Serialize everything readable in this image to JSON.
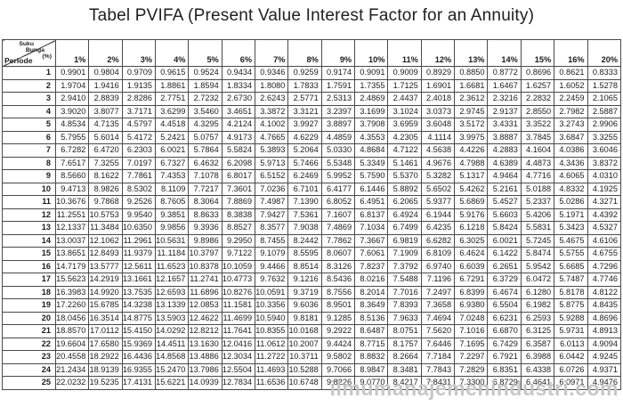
{
  "title": "Tabel PVIFA (Present Value Interest Factor for an Annuity)",
  "watermark": "ilmumanajemenindustri.com",
  "colors": {
    "border": "#4a4a4a",
    "text": "#1c1c1c",
    "watermark": "#c7c7c7",
    "background": "#ffffff"
  },
  "table": {
    "corner": {
      "diagonal_label_lines": [
        "Suku",
        "Bunga",
        "(%)"
      ],
      "row_label": "Periode"
    },
    "rate_headers": [
      "1%",
      "2%",
      "3%",
      "4%",
      "5%",
      "6%",
      "7%",
      "8%",
      "9%",
      "10%",
      "11%",
      "12%",
      "13%",
      "14%",
      "15%",
      "16%",
      "20%"
    ],
    "rows": [
      {
        "period": "1",
        "values": [
          "0.9901",
          "0.9804",
          "0.9709",
          "0.9615",
          "0.9524",
          "0.9434",
          "0.9346",
          "0.9259",
          "0.9174",
          "0.9091",
          "0.9009",
          "0.8929",
          "0.8850",
          "0.8772",
          "0.8696",
          "0.8621",
          "0.8333"
        ]
      },
      {
        "period": "2",
        "values": [
          "1.9704",
          "1.9416",
          "1.9135",
          "1.8861",
          "1.8594",
          "1.8334",
          "1.8080",
          "1.7833",
          "1.7591",
          "1.7355",
          "1.7125",
          "1.6901",
          "1.6681",
          "1.6467",
          "1.6257",
          "1.6052",
          "1.5278"
        ]
      },
      {
        "period": "3",
        "values": [
          "2.9410",
          "2.8839",
          "2.8286",
          "2.7751",
          "2.7232",
          "2.6730",
          "2.6243",
          "2.5771",
          "2.5313",
          "2.4869",
          "2.4437",
          "2.4018",
          "2.3612",
          "2.3216",
          "2.2832",
          "2.2459",
          "2.1065"
        ]
      },
      {
        "period": "4",
        "values": [
          "3.9020",
          "3.8077",
          "3.7171",
          "3.6299",
          "3.5460",
          "3.4651",
          "3.3872",
          "3.3121",
          "3.2397",
          "3.1699",
          "3.1024",
          "3.0373",
          "2.9745",
          "2.9137",
          "2.8550",
          "2.7982",
          "2.5887"
        ]
      },
      {
        "period": "5",
        "values": [
          "4.8534",
          "4.7135",
          "4.5797",
          "4.4518",
          "4.3295",
          "4.2124",
          "4.1002",
          "3.9927",
          "3.8897",
          "3.7908",
          "3.6959",
          "3.6048",
          "3.5172",
          "3.4331",
          "3.3522",
          "3.2743",
          "2.9906"
        ]
      },
      {
        "period": "6",
        "values": [
          "5.7955",
          "5.6014",
          "5.4172",
          "5.2421",
          "5.0757",
          "4.9173",
          "4.7665",
          "4.6229",
          "4.4859",
          "4.3553",
          "4.2305",
          "4.1114",
          "3.9975",
          "3.8887",
          "3.7845",
          "3.6847",
          "3.3255"
        ]
      },
      {
        "period": "7",
        "values": [
          "6.7282",
          "6.4720",
          "6.2303",
          "6.0021",
          "5.7864",
          "5.5824",
          "5.3893",
          "5.2064",
          "5.0330",
          "4.8684",
          "4.7122",
          "4.5638",
          "4.4226",
          "4.2883",
          "4.1604",
          "4.0386",
          "3.6046"
        ]
      },
      {
        "period": "8",
        "values": [
          "7.6517",
          "7.3255",
          "7.0197",
          "6.7327",
          "6.4632",
          "6.2098",
          "5.9713",
          "5.7466",
          "5.5348",
          "5.3349",
          "5.1461",
          "4.9676",
          "4.7988",
          "4.6389",
          "4.4873",
          "4.3436",
          "3.8372"
        ]
      },
      {
        "period": "9",
        "values": [
          "8.5660",
          "8.1622",
          "7.7861",
          "7.4353",
          "7.1078",
          "6.8017",
          "6.5152",
          "6.2469",
          "5.9952",
          "5.7590",
          "5.5370",
          "5.3282",
          "5.1317",
          "4.9464",
          "4.7716",
          "4.6065",
          "4.0310"
        ]
      },
      {
        "period": "10",
        "values": [
          "9.4713",
          "8.9826",
          "8.5302",
          "8.1109",
          "7.7217",
          "7.3601",
          "7.0236",
          "6.7101",
          "6.4177",
          "6.1446",
          "5.8892",
          "5.6502",
          "5.4262",
          "5.2161",
          "5.0188",
          "4.8332",
          "4.1925"
        ]
      },
      {
        "period": "11",
        "values": [
          "10.3676",
          "9.7868",
          "9.2526",
          "8.7605",
          "8.3064",
          "7.8869",
          "7.4987",
          "7.1390",
          "6.8052",
          "6.4951",
          "6.2065",
          "5.9377",
          "5.6869",
          "5.4527",
          "5.2337",
          "5.0286",
          "4.3271"
        ]
      },
      {
        "period": "12",
        "values": [
          "11.2551",
          "10.5753",
          "9.9540",
          "9.3851",
          "8.8633",
          "8.3838",
          "7.9427",
          "7.5361",
          "7.1607",
          "6.8137",
          "6.4924",
          "6.1944",
          "5.9176",
          "5.6603",
          "5.4206",
          "5.1971",
          "4.4392"
        ]
      },
      {
        "period": "13",
        "values": [
          "12.1337",
          "11.3484",
          "10.6350",
          "9.9856",
          "9.3936",
          "8.8527",
          "8.3577",
          "7.9038",
          "7.4869",
          "7.1034",
          "6.7499",
          "6.4235",
          "6.1218",
          "5.8424",
          "5.5831",
          "5.3423",
          "4.5327"
        ]
      },
      {
        "period": "14",
        "values": [
          "13.0037",
          "12.1062",
          "11.2961",
          "10.5631",
          "9.8986",
          "9.2950",
          "8.7455",
          "8.2442",
          "7.7862",
          "7.3667",
          "6.9819",
          "6.6282",
          "6.3025",
          "6.0021",
          "5.7245",
          "5.4675",
          "4.6106"
        ]
      },
      {
        "period": "15",
        "values": [
          "13.8651",
          "12.8493",
          "11.9379",
          "11.1184",
          "10.3797",
          "9.7122",
          "9.1079",
          "8.5595",
          "8.0607",
          "7.6061",
          "7.1909",
          "6.8109",
          "6.4624",
          "6.1422",
          "5.8474",
          "5.5755",
          "4.6755"
        ]
      },
      {
        "period": "16",
        "values": [
          "14.7179",
          "13.5777",
          "12.5611",
          "11.6523",
          "10.8378",
          "10.1059",
          "9.4466",
          "8.8514",
          "8.3126",
          "7.8237",
          "7.3792",
          "6.9740",
          "6.6039",
          "6.2651",
          "5.9542",
          "5.6685",
          "4.7296"
        ]
      },
      {
        "period": "17",
        "values": [
          "15.5623",
          "14.2919",
          "13.1661",
          "12.1657",
          "11.2741",
          "10.4773",
          "9.7632",
          "9.1216",
          "8.5436",
          "8.0216",
          "7.5488",
          "7.1196",
          "6.7291",
          "6.3729",
          "6.0472",
          "5.7487",
          "4.7746"
        ]
      },
      {
        "period": "18",
        "values": [
          "16.3983",
          "14.9920",
          "13.7535",
          "12.6593",
          "11.6896",
          "10.8276",
          "10.0591",
          "9.3719",
          "8.7556",
          "8.2014",
          "7.7016",
          "7.2497",
          "6.8399",
          "6.4674",
          "6.1280",
          "5.8178",
          "4.8122"
        ]
      },
      {
        "period": "19",
        "values": [
          "17.2260",
          "15.6785",
          "14.3238",
          "13.1339",
          "12.0853",
          "11.1581",
          "10.3356",
          "9.6036",
          "8.9501",
          "8.3649",
          "7.8393",
          "7.3658",
          "6.9380",
          "6.5504",
          "6.1982",
          "5.8775",
          "4.8435"
        ]
      },
      {
        "period": "20",
        "values": [
          "18.0456",
          "16.3514",
          "14.8775",
          "13.5903",
          "12.4622",
          "11.4699",
          "10.5940",
          "9.8181",
          "9.1285",
          "8.5136",
          "7.9633",
          "7.4694",
          "7.0248",
          "6.6231",
          "6.2593",
          "5.9288",
          "4.8696"
        ]
      },
      {
        "period": "21",
        "values": [
          "18.8570",
          "17.0112",
          "15.4150",
          "14.0292",
          "12.8212",
          "11.7641",
          "10.8355",
          "10.0168",
          "9.2922",
          "8.6487",
          "8.0751",
          "7.5620",
          "7.1016",
          "6.6870",
          "6.3125",
          "5.9731",
          "4.8913"
        ]
      },
      {
        "period": "22",
        "values": [
          "19.6604",
          "17.6580",
          "15.9369",
          "14.4511",
          "13.1630",
          "12.0416",
          "11.0612",
          "10.2007",
          "9.4424",
          "8.7715",
          "8.1757",
          "7.6446",
          "7.1695",
          "6.7429",
          "6.3587",
          "6.0113",
          "4.9094"
        ]
      },
      {
        "period": "23",
        "values": [
          "20.4558",
          "18.2922",
          "16.4436",
          "14.8568",
          "13.4886",
          "12.3034",
          "11.2722",
          "10.3711",
          "9.5802",
          "8.8832",
          "8.2664",
          "7.7184",
          "7.2297",
          "6.7921",
          "6.3988",
          "6.0442",
          "4.9245"
        ]
      },
      {
        "period": "24",
        "values": [
          "21.2434",
          "18.9139",
          "16.9355",
          "15.2470",
          "13.7986",
          "12.5504",
          "11.4693",
          "10.5288",
          "9.7066",
          "8.9847",
          "8.3481",
          "7.7843",
          "7.2829",
          "6.8351",
          "6.4338",
          "6.0726",
          "4.9371"
        ]
      },
      {
        "period": "25",
        "values": [
          "22.0232",
          "19.5235",
          "17.4131",
          "15.6221",
          "14.0939",
          "12.7834",
          "11.6536",
          "10.6748",
          "9.8226",
          "9.0770",
          "8.4217",
          "7.8431",
          "7.3300",
          "6.8729",
          "6.4641",
          "6.0971",
          "4.9476"
        ]
      }
    ]
  }
}
